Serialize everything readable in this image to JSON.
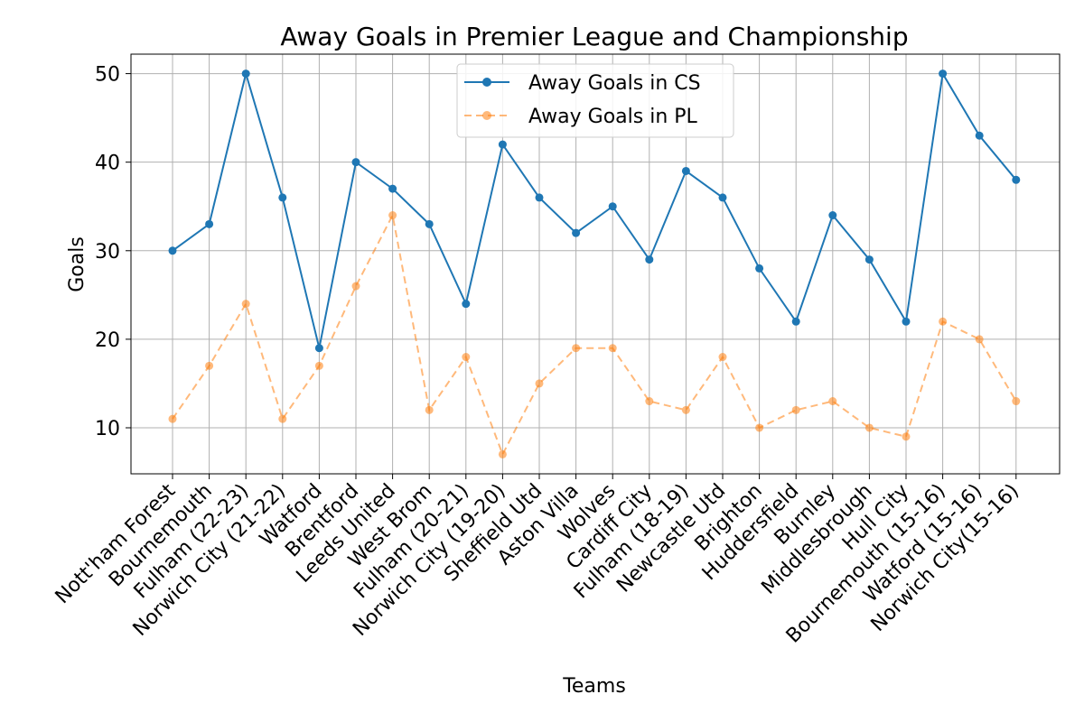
{
  "chart_data": {
    "type": "line",
    "title": "Away Goals in Premier League and Championship",
    "xlabel": "Teams",
    "ylabel": "Goals",
    "ylim": [
      4.8,
      52.2
    ],
    "yticks": [
      10,
      20,
      30,
      40,
      50
    ],
    "grid": true,
    "legend_placement": "upper-center",
    "categories": [
      "Nott'ham Forest",
      "Bournemouth",
      "Fulham (22-23)",
      "Norwich City (21-22)",
      "Watford",
      "Brentford",
      "Leeds United",
      "West Brom",
      "Fulham (20-21)",
      "Norwich City (19-20)",
      "Sheffield Utd",
      "Aston Villa",
      "Wolves",
      "Cardiff City",
      "Fulham (18-19)",
      "Newcastle Utd",
      "Brighton",
      "Huddersfield",
      "Burnley",
      "Middlesbrough",
      "Hull City",
      "Bournemouth (15-16)",
      "Watford (15-16)",
      "Norwich City(15-16)"
    ],
    "series": [
      {
        "name": "Away Goals in CS",
        "color": "#1f77b4",
        "style": "solid",
        "values": [
          30,
          33,
          50,
          36,
          19,
          40,
          37,
          33,
          24,
          42,
          36,
          32,
          35,
          29,
          39,
          36,
          28,
          22,
          34,
          29,
          22,
          50,
          43,
          38
        ]
      },
      {
        "name": "Away Goals in PL",
        "color": "#ff7f0e",
        "style": "dashed",
        "values": [
          11,
          17,
          24,
          11,
          17,
          26,
          34,
          12,
          18,
          7,
          15,
          19,
          19,
          13,
          12,
          18,
          10,
          12,
          13,
          10,
          9,
          22,
          20,
          13
        ]
      }
    ]
  }
}
